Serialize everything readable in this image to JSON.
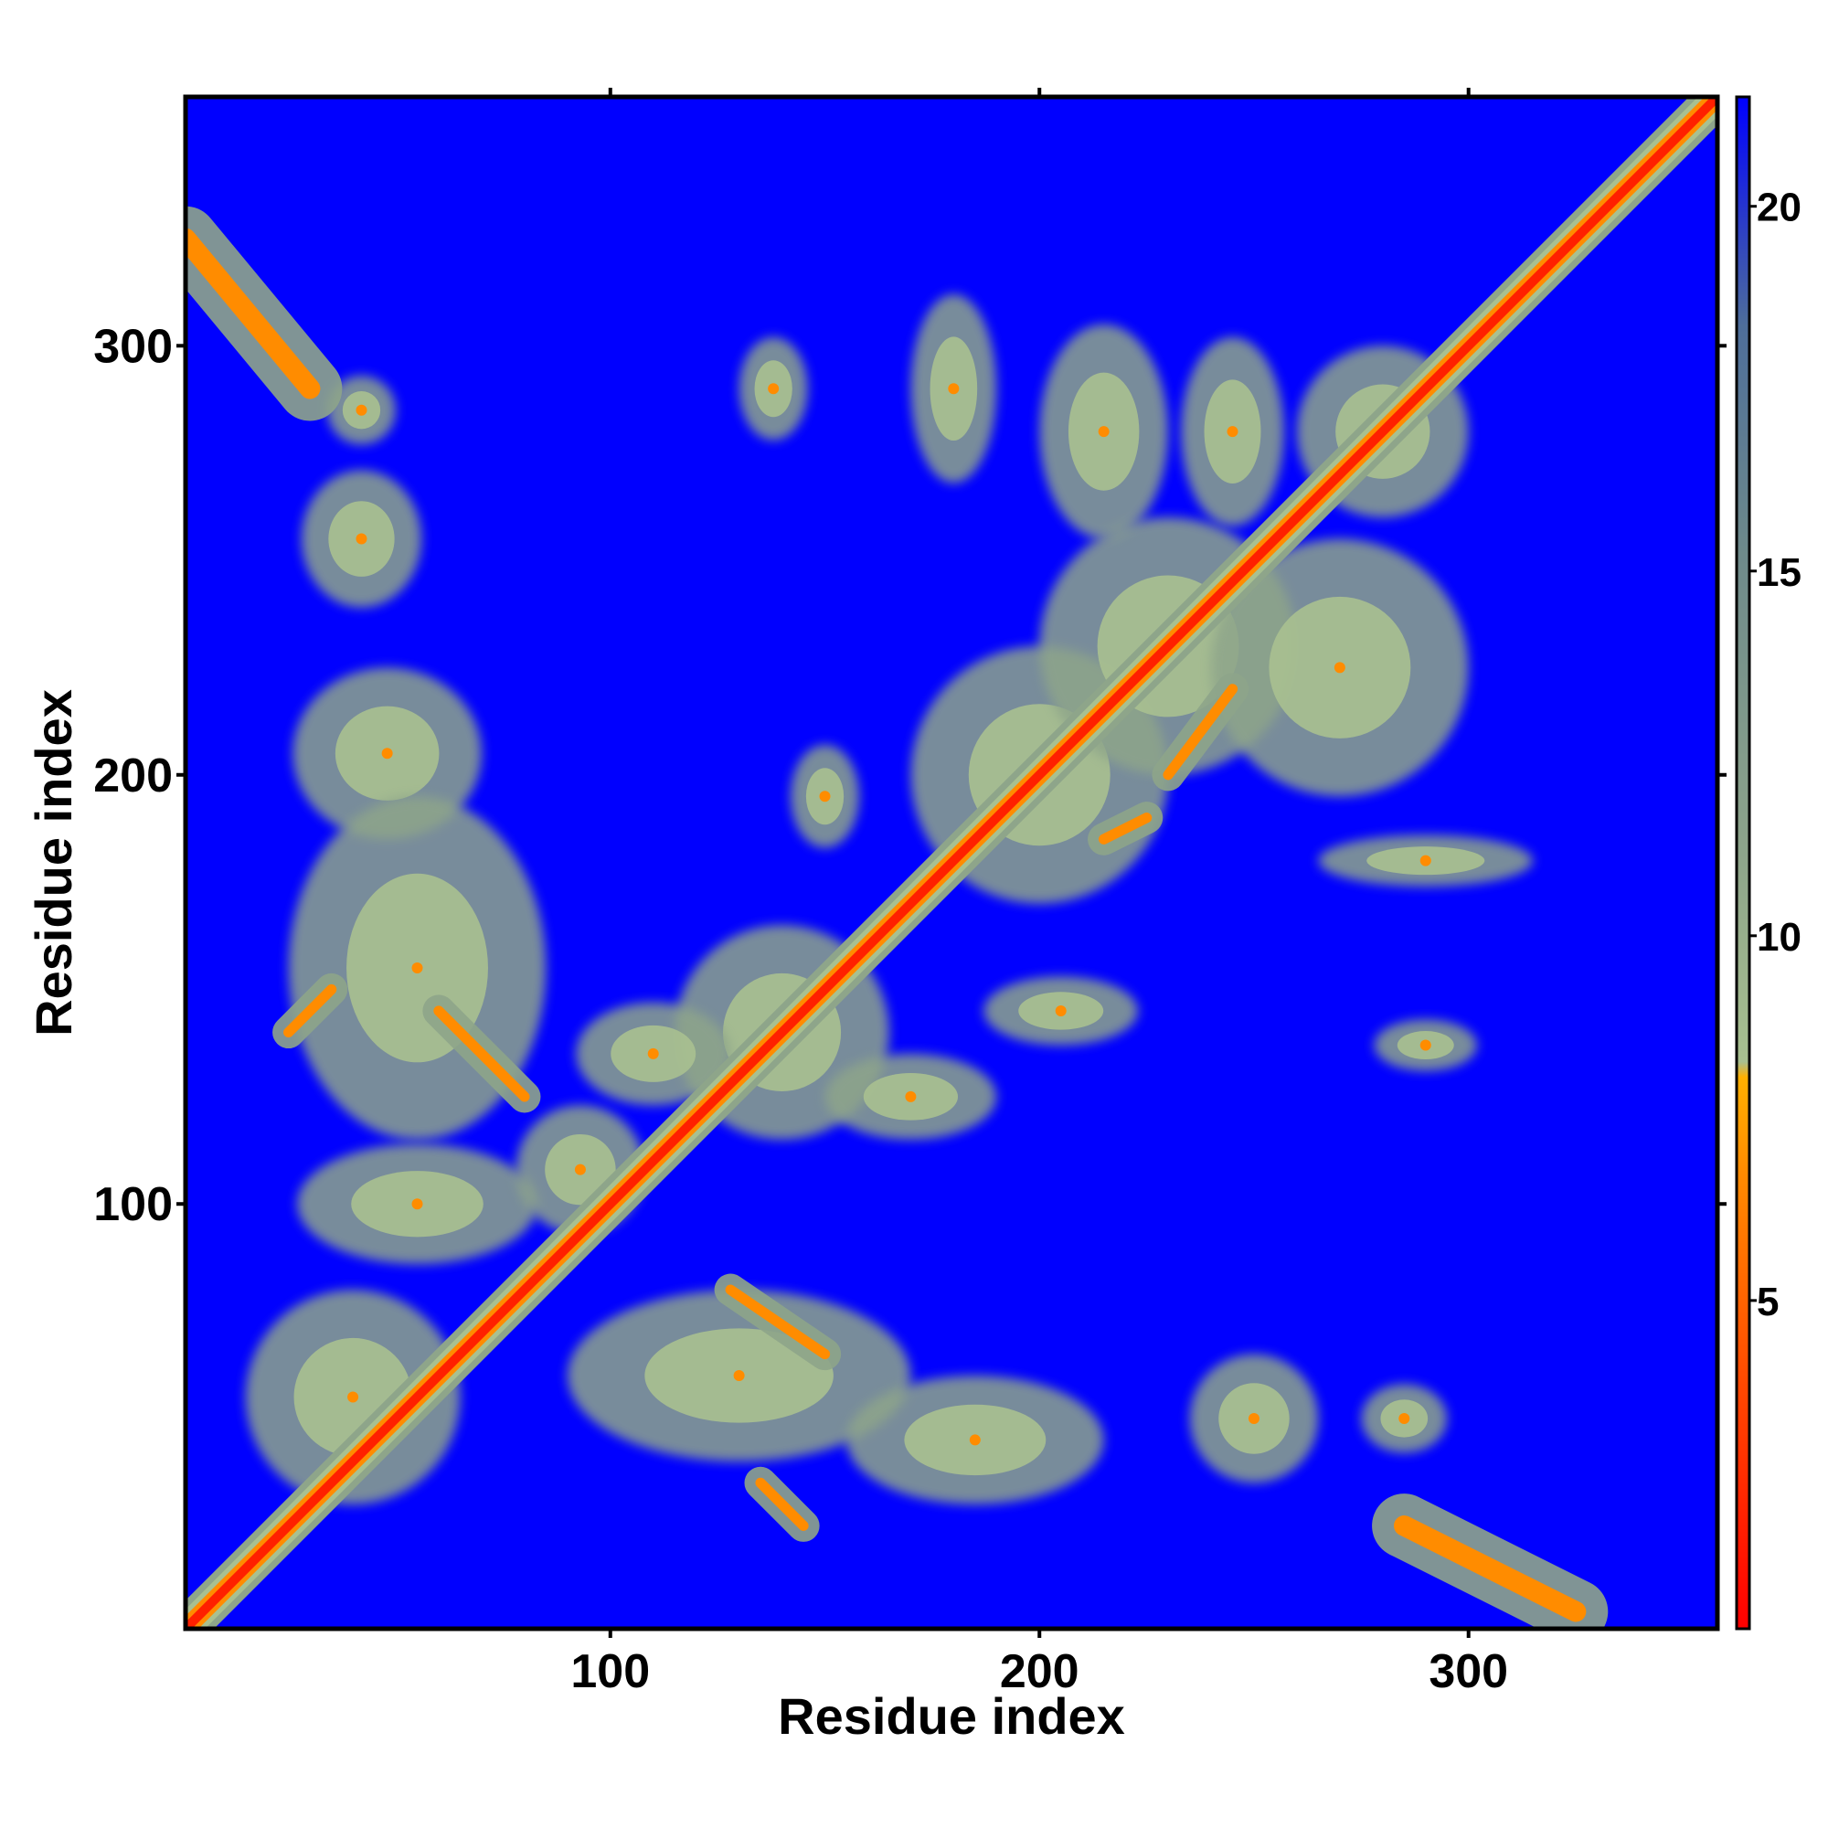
{
  "chart_data": {
    "type": "heatmap",
    "title": "",
    "xlabel": "Residue index",
    "ylabel": "Residue index",
    "xlim": [
      1,
      358
    ],
    "ylim": [
      1,
      358
    ],
    "x_ticks": [
      100,
      200,
      300
    ],
    "y_ticks": [
      100,
      200,
      300
    ],
    "colorbar": {
      "ticks": [
        5,
        10,
        15,
        20
      ],
      "range": [
        0.5,
        21.5
      ],
      "colors": [
        "#ff0000",
        "#ff4400",
        "#ff8c00",
        "#ffb000",
        "#a8c090",
        "#8ea58a",
        "#6e8a8a",
        "#4e6e9a",
        "#0000ff"
      ],
      "stops": [
        0,
        0.15,
        0.3,
        0.36,
        0.37,
        0.5,
        0.7,
        0.85,
        1.0
      ]
    },
    "background_color": "#0000ff",
    "diagonal_value": 0,
    "contact_features": [
      {
        "kind": "blob",
        "x": 42,
        "y": 285,
        "rx": 8,
        "ry": 8
      },
      {
        "kind": "blob",
        "x": 42,
        "y": 255,
        "rx": 14,
        "ry": 16
      },
      {
        "kind": "blob",
        "x": 138,
        "y": 290,
        "rx": 8,
        "ry": 12
      },
      {
        "kind": "blob",
        "x": 48,
        "y": 205,
        "rx": 22,
        "ry": 20
      },
      {
        "kind": "blob",
        "x": 55,
        "y": 155,
        "rx": 30,
        "ry": 40
      },
      {
        "kind": "blob",
        "x": 55,
        "y": 100,
        "rx": 28,
        "ry": 14
      },
      {
        "kind": "blob",
        "x": 40,
        "y": 55,
        "rx": 25,
        "ry": 25
      },
      {
        "kind": "blob",
        "x": 130,
        "y": 60,
        "rx": 40,
        "ry": 20
      },
      {
        "kind": "blob",
        "x": 185,
        "y": 45,
        "rx": 30,
        "ry": 15
      },
      {
        "kind": "blob",
        "x": 140,
        "y": 140,
        "rx": 25,
        "ry": 25
      },
      {
        "kind": "blob",
        "x": 110,
        "y": 135,
        "rx": 18,
        "ry": 12
      },
      {
        "kind": "blob",
        "x": 200,
        "y": 200,
        "rx": 30,
        "ry": 30
      },
      {
        "kind": "blob",
        "x": 230,
        "y": 230,
        "rx": 30,
        "ry": 30
      },
      {
        "kind": "blob",
        "x": 215,
        "y": 280,
        "rx": 15,
        "ry": 25
      },
      {
        "kind": "blob",
        "x": 245,
        "y": 280,
        "rx": 12,
        "ry": 22
      },
      {
        "kind": "blob",
        "x": 280,
        "y": 280,
        "rx": 20,
        "ry": 20
      },
      {
        "kind": "blob",
        "x": 270,
        "y": 225,
        "rx": 30,
        "ry": 30
      },
      {
        "kind": "blob",
        "x": 290,
        "y": 137,
        "rx": 12,
        "ry": 6
      },
      {
        "kind": "blob",
        "x": 250,
        "y": 50,
        "rx": 15,
        "ry": 15
      },
      {
        "kind": "blob",
        "x": 285,
        "y": 50,
        "rx": 10,
        "ry": 8
      },
      {
        "kind": "blob",
        "x": 290,
        "y": 180,
        "rx": 25,
        "ry": 6
      },
      {
        "kind": "blob",
        "x": 180,
        "y": 290,
        "rx": 10,
        "ry": 22
      },
      {
        "kind": "blob",
        "x": 205,
        "y": 145,
        "rx": 18,
        "ry": 8
      },
      {
        "kind": "blob",
        "x": 150,
        "y": 195,
        "rx": 8,
        "ry": 12
      },
      {
        "kind": "blob",
        "x": 93,
        "y": 108,
        "rx": 15,
        "ry": 15
      },
      {
        "kind": "blob",
        "x": 170,
        "y": 125,
        "rx": 20,
        "ry": 10
      },
      {
        "kind": "line",
        "x1": 1,
        "y1": 325,
        "x2": 30,
        "y2": 290,
        "w": 6
      },
      {
        "kind": "line",
        "x1": 285,
        "y1": 25,
        "x2": 325,
        "y2": 5,
        "w": 6
      },
      {
        "kind": "line",
        "x1": 25,
        "y1": 140,
        "x2": 35,
        "y2": 150,
        "w": 3
      },
      {
        "kind": "line",
        "x1": 60,
        "y1": 145,
        "x2": 80,
        "y2": 125,
        "w": 3
      },
      {
        "kind": "line",
        "x1": 128,
        "y1": 80,
        "x2": 150,
        "y2": 65,
        "w": 3
      },
      {
        "kind": "line",
        "x1": 145,
        "y1": 25,
        "x2": 135,
        "y2": 35,
        "w": 3
      },
      {
        "kind": "line",
        "x1": 230,
        "y1": 200,
        "x2": 245,
        "y2": 220,
        "w": 3
      },
      {
        "kind": "line",
        "x1": 215,
        "y1": 185,
        "x2": 225,
        "y2": 190,
        "w": 3
      }
    ]
  }
}
